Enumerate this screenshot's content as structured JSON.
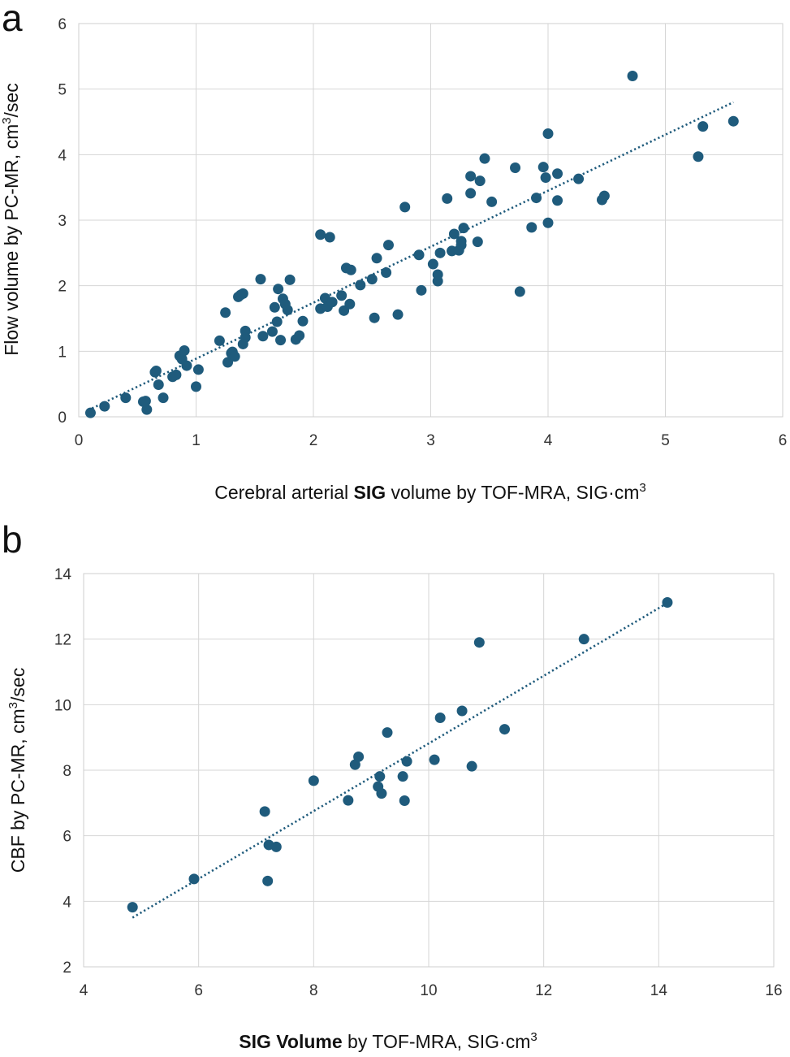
{
  "chart_data": [
    {
      "type": "scatter",
      "panel_label": "a",
      "xlabel_parts": [
        {
          "text": "Cerebral arterial ",
          "bold": false
        },
        {
          "text": "SIG",
          "bold": true
        },
        {
          "text": " volume by TOF-MRA, SIG·cm",
          "bold": false
        }
      ],
      "xlabel_sup": "3",
      "ylabel": "Flow volume by PC-MR, cm",
      "ylabel_sup": "3",
      "ylabel_suffix": "/sec",
      "xlim": [
        0,
        6
      ],
      "ylim": [
        0,
        6
      ],
      "xticks": [
        0,
        1,
        2,
        3,
        4,
        5,
        6
      ],
      "yticks": [
        0,
        1,
        2,
        3,
        4,
        5,
        6
      ],
      "grid": true,
      "trendline": {
        "x": [
          0.08,
          5.58
        ],
        "y": [
          0.1,
          4.8
        ],
        "style": "dotted"
      },
      "points": [
        [
          0.1,
          0.06
        ],
        [
          0.22,
          0.16
        ],
        [
          0.4,
          0.29
        ],
        [
          0.55,
          0.23
        ],
        [
          0.57,
          0.24
        ],
        [
          0.58,
          0.11
        ],
        [
          0.65,
          0.68
        ],
        [
          0.66,
          0.7
        ],
        [
          0.68,
          0.49
        ],
        [
          0.72,
          0.29
        ],
        [
          0.8,
          0.61
        ],
        [
          0.83,
          0.64
        ],
        [
          0.86,
          0.93
        ],
        [
          0.88,
          0.88
        ],
        [
          0.9,
          1.01
        ],
        [
          0.92,
          0.78
        ],
        [
          1.0,
          0.46
        ],
        [
          1.02,
          0.72
        ],
        [
          1.2,
          1.16
        ],
        [
          1.25,
          1.59
        ],
        [
          1.27,
          0.83
        ],
        [
          1.3,
          0.97
        ],
        [
          1.31,
          0.99
        ],
        [
          1.33,
          0.92
        ],
        [
          1.36,
          1.83
        ],
        [
          1.38,
          1.86
        ],
        [
          1.4,
          1.88
        ],
        [
          1.4,
          1.11
        ],
        [
          1.42,
          1.21
        ],
        [
          1.42,
          1.31
        ],
        [
          1.55,
          2.1
        ],
        [
          1.57,
          1.23
        ],
        [
          1.65,
          1.3
        ],
        [
          1.67,
          1.67
        ],
        [
          1.69,
          1.45
        ],
        [
          1.7,
          1.95
        ],
        [
          1.72,
          1.17
        ],
        [
          1.74,
          1.8
        ],
        [
          1.76,
          1.72
        ],
        [
          1.78,
          1.63
        ],
        [
          1.8,
          2.09
        ],
        [
          1.85,
          1.18
        ],
        [
          1.88,
          1.24
        ],
        [
          1.91,
          1.46
        ],
        [
          2.06,
          2.78
        ],
        [
          2.06,
          1.65
        ],
        [
          2.1,
          1.81
        ],
        [
          2.12,
          1.68
        ],
        [
          2.14,
          2.74
        ],
        [
          2.16,
          1.75
        ],
        [
          2.24,
          1.85
        ],
        [
          2.26,
          1.62
        ],
        [
          2.28,
          2.27
        ],
        [
          2.32,
          2.24
        ],
        [
          2.31,
          1.72
        ],
        [
          2.4,
          2.01
        ],
        [
          2.5,
          2.1
        ],
        [
          2.52,
          1.51
        ],
        [
          2.54,
          2.42
        ],
        [
          2.62,
          2.2
        ],
        [
          2.64,
          2.62
        ],
        [
          2.72,
          1.56
        ],
        [
          2.78,
          3.2
        ],
        [
          2.9,
          2.47
        ],
        [
          2.92,
          1.93
        ],
        [
          3.02,
          2.33
        ],
        [
          3.06,
          2.07
        ],
        [
          3.06,
          2.17
        ],
        [
          3.08,
          2.5
        ],
        [
          3.14,
          3.33
        ],
        [
          3.18,
          2.53
        ],
        [
          3.2,
          2.79
        ],
        [
          3.24,
          2.54
        ],
        [
          3.26,
          2.62
        ],
        [
          3.26,
          2.68
        ],
        [
          3.28,
          2.88
        ],
        [
          3.34,
          3.41
        ],
        [
          3.34,
          3.67
        ],
        [
          3.4,
          2.67
        ],
        [
          3.42,
          3.6
        ],
        [
          3.46,
          3.94
        ],
        [
          3.52,
          3.28
        ],
        [
          3.72,
          3.8
        ],
        [
          3.76,
          1.91
        ],
        [
          3.86,
          2.89
        ],
        [
          3.9,
          3.34
        ],
        [
          3.96,
          3.81
        ],
        [
          3.98,
          3.65
        ],
        [
          4.0,
          4.32
        ],
        [
          4.0,
          2.96
        ],
        [
          4.08,
          3.71
        ],
        [
          4.08,
          3.3
        ],
        [
          4.26,
          3.63
        ],
        [
          4.46,
          3.31
        ],
        [
          4.48,
          3.37
        ],
        [
          4.72,
          5.2
        ],
        [
          5.28,
          3.97
        ],
        [
          5.32,
          4.43
        ],
        [
          5.58,
          4.51
        ]
      ]
    },
    {
      "type": "scatter",
      "panel_label": "b",
      "xlabel_parts": [
        {
          "text": "SIG",
          "bold": true
        },
        {
          "text": " Volume",
          "bold": true
        },
        {
          "text": " by TOF-MRA, SIG·cm",
          "bold": false
        }
      ],
      "xlabel_sup": "3",
      "ylabel": "CBF by PC-MR, cm",
      "ylabel_sup": "3",
      "ylabel_suffix": "/sec",
      "xlim": [
        4,
        16
      ],
      "ylim": [
        2,
        14
      ],
      "xticks": [
        4,
        6,
        8,
        10,
        12,
        14,
        16
      ],
      "yticks": [
        2,
        4,
        6,
        8,
        10,
        12,
        14
      ],
      "grid": true,
      "trendline": {
        "x": [
          4.85,
          14.15
        ],
        "y": [
          3.5,
          13.1
        ],
        "style": "dotted"
      },
      "points": [
        [
          4.85,
          3.82
        ],
        [
          5.92,
          4.68
        ],
        [
          7.15,
          6.74
        ],
        [
          7.2,
          4.62
        ],
        [
          7.22,
          5.72
        ],
        [
          7.35,
          5.66
        ],
        [
          8.0,
          7.68
        ],
        [
          8.6,
          7.08
        ],
        [
          8.72,
          8.17
        ],
        [
          8.78,
          8.41
        ],
        [
          9.12,
          7.5
        ],
        [
          9.15,
          7.81
        ],
        [
          9.18,
          7.29
        ],
        [
          9.28,
          9.15
        ],
        [
          9.55,
          7.81
        ],
        [
          9.58,
          7.07
        ],
        [
          9.62,
          8.27
        ],
        [
          10.1,
          8.32
        ],
        [
          10.2,
          9.6
        ],
        [
          10.58,
          9.81
        ],
        [
          10.75,
          8.12
        ],
        [
          10.88,
          11.9
        ],
        [
          11.32,
          9.25
        ],
        [
          12.7,
          12.0
        ],
        [
          14.15,
          13.12
        ]
      ]
    }
  ]
}
